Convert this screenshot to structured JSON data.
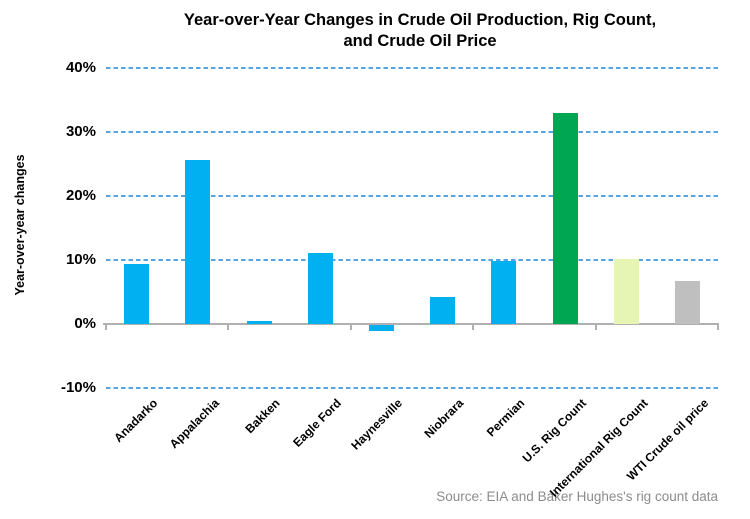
{
  "chart_data": {
    "type": "bar",
    "title": "Year-over-Year Changes in Crude Oil Production, Rig Count, and Crude Oil Price",
    "title_lines": [
      "Year-over-Year Changes in Crude Oil Production, Rig Count,",
      "and Crude Oil Price"
    ],
    "ylabel": "Year-over-year changes",
    "xlabel": "",
    "categories": [
      "Anadarko",
      "Appalachia",
      "Bakken",
      "Eagle Ford",
      "Haynesville",
      "Niobrara",
      "Permian",
      "U.S. Rig Count",
      "International Rig Count",
      "WTI Crude oil price"
    ],
    "values": [
      9.4,
      25.6,
      0.4,
      11.1,
      -1.0,
      4.2,
      9.8,
      33.0,
      10.2,
      6.7
    ],
    "bar_colors": [
      "#00b0f0",
      "#00b0f0",
      "#00b0f0",
      "#00b0f0",
      "#00b0f0",
      "#00b0f0",
      "#00b0f0",
      "#00a651",
      "#e6f5b4",
      "#bfbfbf"
    ],
    "ylim": [
      -10,
      40
    ],
    "yticks": {
      "labels": [
        "40%",
        "30%",
        "20%",
        "10%",
        "0%",
        "-10%"
      ],
      "values": [
        40,
        30,
        20,
        10,
        0,
        -10
      ]
    },
    "grid": "dashed horizontal gridlines except solid zero axis",
    "legend": "none",
    "source": "Source: EIA and Baker Hughes's rig count data"
  },
  "colors": {
    "gridline_blue": "#55a3e0",
    "axis_gray": "#b0b0b0",
    "title_text": "#000000",
    "source_text": "#8c8c8c"
  }
}
